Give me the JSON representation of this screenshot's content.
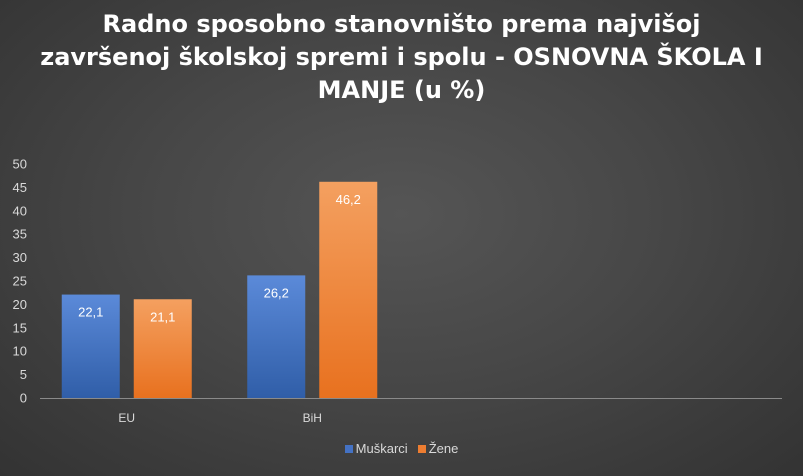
{
  "chart_data": {
    "type": "bar",
    "title": "Radno sposobno stanovništo prema najvišoj završenoj školskoj spremi i spolu - OSNOVNA ŠKOLA I MANJE (u %)",
    "categories": [
      "EU",
      "BiH",
      "",
      ""
    ],
    "series": [
      {
        "name": "Muškarci",
        "color": "#4472c4",
        "values": [
          22.1,
          26.2,
          null,
          null
        ],
        "labels": [
          "22,1",
          "26,2",
          "",
          ""
        ]
      },
      {
        "name": "Žene",
        "color": "#ed7d31",
        "values": [
          21.1,
          46.2,
          null,
          null
        ],
        "labels": [
          "21,1",
          "46,2",
          "",
          ""
        ]
      }
    ],
    "ylim": [
      0,
      50
    ],
    "yticks": [
      "0",
      "5",
      "10",
      "15",
      "20",
      "25",
      "30",
      "35",
      "40",
      "45",
      "50"
    ],
    "grid": false,
    "legend_position": "bottom"
  }
}
